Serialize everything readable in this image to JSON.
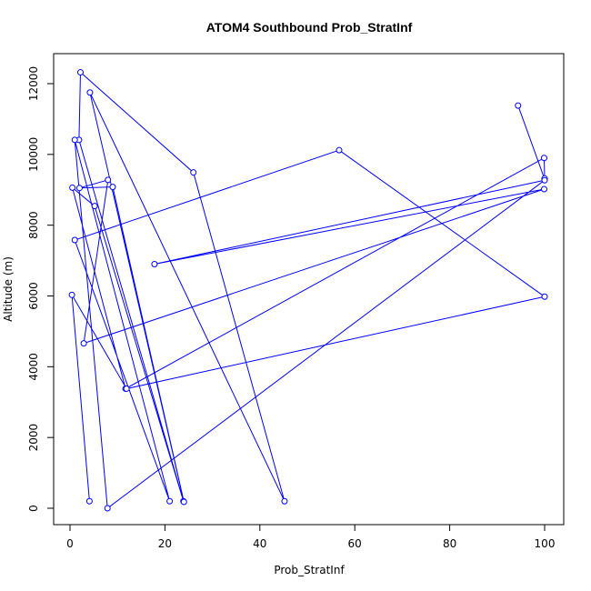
{
  "chart_data": {
    "type": "line",
    "title": "ATOM4 Southbound Prob_StratInf",
    "xlabel": "Prob_StratInf",
    "ylabel": "Altitude (m)",
    "xlim": [
      0,
      100
    ],
    "ylim": [
      0,
      12000
    ],
    "x_ticks": [
      0,
      20,
      40,
      60,
      80,
      100
    ],
    "y_ticks": [
      0,
      2000,
      4000,
      6000,
      8000,
      10000,
      12000
    ],
    "series": [
      {
        "color": "#0000ff",
        "markers": "open-circle",
        "points": [
          {
            "x": 94.4,
            "y": 11380
          },
          {
            "x": 100,
            "y": 9300
          },
          {
            "x": 100,
            "y": 9320
          },
          {
            "x": 99.9,
            "y": 9900
          },
          {
            "x": 11.7,
            "y": 3380
          },
          {
            "x": 0.5,
            "y": 9060
          },
          {
            "x": 5.2,
            "y": 8540
          },
          {
            "x": 23.9,
            "y": 200
          },
          {
            "x": 1.9,
            "y": 10410
          },
          {
            "x": 2.2,
            "y": 12320
          },
          {
            "x": 26.0,
            "y": 9490
          },
          {
            "x": 45.2,
            "y": 200
          },
          {
            "x": 4.2,
            "y": 11750
          },
          {
            "x": 24.0,
            "y": 180
          },
          {
            "x": 9.0,
            "y": 9080
          },
          {
            "x": 2.0,
            "y": 9050
          },
          {
            "x": 8.0,
            "y": 9280
          },
          {
            "x": 2.9,
            "y": 4660
          },
          {
            "x": 99.9,
            "y": 9020
          },
          {
            "x": 17.8,
            "y": 6900
          },
          {
            "x": 100,
            "y": 9270
          },
          {
            "x": 7.9,
            "y": 0
          },
          {
            "x": 1.0,
            "y": 10410
          },
          {
            "x": 21.0,
            "y": 200
          },
          {
            "x": 1.0,
            "y": 7580
          },
          {
            "x": 56.7,
            "y": 10120
          },
          {
            "x": 100,
            "y": 5980
          },
          {
            "x": 11.9,
            "y": 3380
          },
          {
            "x": 0.4,
            "y": 6030
          },
          {
            "x": 4.1,
            "y": 200
          }
        ]
      }
    ]
  }
}
